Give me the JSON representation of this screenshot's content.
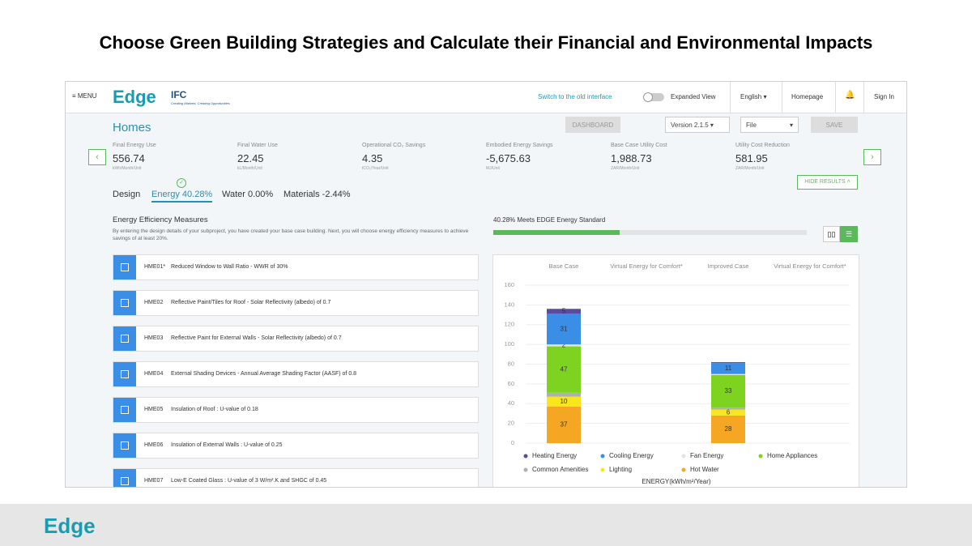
{
  "slide": {
    "title": "Choose Green Building Strategies and Calculate their Financial and Environmental Impacts"
  },
  "nav": {
    "menu": "MENU",
    "logo": "Edge",
    "ifc": "IFC",
    "ifc_tagline": "Creating Markets, Creating Opportunities",
    "switch": "Switch to the old interface",
    "expanded": "Expanded View",
    "language": "English",
    "homepage": "Homepage",
    "sign_in": "Sign In"
  },
  "project": {
    "title": "Homes",
    "dashboard": "DASHBOARD",
    "version": "Version 2.1.5",
    "file": "File",
    "save": "SAVE",
    "hide_results": "HIDE RESULTS"
  },
  "metrics": [
    {
      "label": "Final Energy Use",
      "value": "556.74",
      "unit": "kWh/Month/Unit"
    },
    {
      "label": "Final Water Use",
      "value": "22.45",
      "unit": "kL/Month/Unit"
    },
    {
      "label": "Operational CO₂ Savings",
      "value": "4.35",
      "unit": "tCO₂/Year/Unit"
    },
    {
      "label": "Embodied Energy Savings",
      "value": "-5,675.63",
      "unit": "MJ/Unit"
    },
    {
      "label": "Base Case Utility Cost",
      "value": "1,988.73",
      "unit": "ZAR/Month/Unit"
    },
    {
      "label": "Utility Cost Reduction",
      "value": "581.95",
      "unit": "ZAR/Month/Unit"
    }
  ],
  "tabs": [
    "Design",
    "Energy 40.28%",
    "Water 0.00%",
    "Materials -2.44%"
  ],
  "section": {
    "title": "Energy Efficiency Measures",
    "description": "By entering the design details of your subproject, you have created your base case building. Next, you will choose energy efficiency measures to achieve savings of at least 20%."
  },
  "progress": {
    "label": "40.28% Meets EDGE Energy Standard",
    "value": 40.28
  },
  "measures": [
    {
      "code": "HME01*",
      "text": "Reduced Window to Wall Ratio - WWR of 30%"
    },
    {
      "code": "HME02",
      "text": "Reflective Paint/Tiles for Roof - Solar Reflectivity (albedo) of 0.7"
    },
    {
      "code": "HME03",
      "text": "Reflective Paint for External Walls - Solar Reflectivity (albedo) of 0.7"
    },
    {
      "code": "HME04",
      "text": "External Shading Devices - Annual Average Shading Factor (AASF) of 0.8"
    },
    {
      "code": "HME05",
      "text": "Insulation of Roof : U-value of 0.18"
    },
    {
      "code": "HME06",
      "text": "Insulation of External Walls : U-value of 0.25"
    },
    {
      "code": "HME07",
      "text": "Low-E Coated Glass : U-value of 3 W/m².K and SHGC of 0.45"
    }
  ],
  "chart_data": {
    "type": "bar",
    "stacked": true,
    "categories": [
      "Base Case",
      "Virtual Energy for Comfort*",
      "Improved Case",
      "Virtual Energy for Comfort*"
    ],
    "series": [
      {
        "name": "Heating Energy",
        "color": "#5b4a9e",
        "values": [
          5,
          null,
          1,
          null
        ],
        "value_labels": [
          "5",
          null,
          null,
          null
        ]
      },
      {
        "name": "Cooling Energy",
        "color": "#3a8ee6",
        "values": [
          31,
          null,
          11,
          null
        ],
        "value_labels": [
          "31",
          null,
          "11",
          null
        ]
      },
      {
        "name": "Fan Energy",
        "color": "#e3e3e3",
        "values": [
          2,
          null,
          1,
          null
        ],
        "value_labels": [
          "2",
          null,
          null,
          null
        ]
      },
      {
        "name": "Home Appliances",
        "color": "#7ed321",
        "values": [
          47,
          null,
          33,
          null
        ],
        "value_labels": [
          "47",
          null,
          "33",
          null
        ]
      },
      {
        "name": "Common Amenities",
        "color": "#b0b0b0",
        "values": [
          4,
          null,
          2,
          null
        ],
        "value_labels": [
          null,
          null,
          null,
          null
        ]
      },
      {
        "name": "Lighting",
        "color": "#f8e71c",
        "values": [
          10,
          null,
          6,
          null
        ],
        "value_labels": [
          "10",
          null,
          "6",
          null
        ]
      },
      {
        "name": "Hot Water",
        "color": "#f5a623",
        "values": [
          37,
          null,
          28,
          null
        ],
        "value_labels": [
          "37",
          null,
          "28",
          null
        ]
      }
    ],
    "ylim": [
      0,
      160
    ],
    "yticks": [
      0,
      20,
      40,
      60,
      80,
      100,
      120,
      140,
      160
    ],
    "grid": true,
    "legend": "bottom",
    "xlabel": "ENERGY(kWh/m²/Year)"
  },
  "footer": {
    "logo": "Edge"
  }
}
